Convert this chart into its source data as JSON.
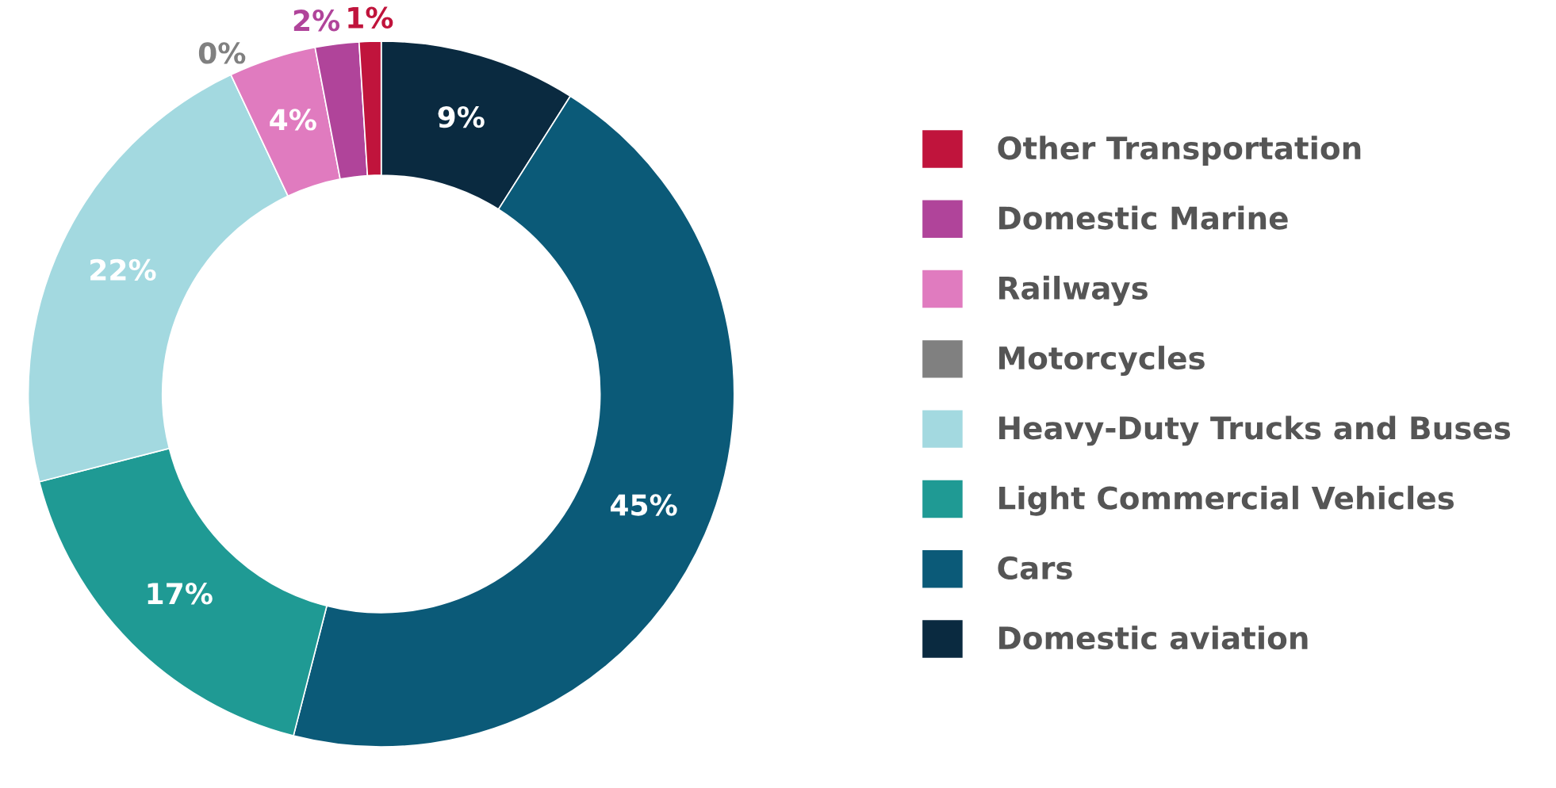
{
  "chart_data": {
    "type": "donut",
    "categories": [
      "Domestic aviation",
      "Cars",
      "Light Commercial Vehicles",
      "Heavy-Duty Trucks and Buses",
      "Motorcycles",
      "Railways",
      "Domestic Marine",
      "Other Transportation"
    ],
    "values": [
      9,
      45,
      17,
      22,
      0,
      4,
      2,
      1
    ],
    "colors": [
      "#0a2a40",
      "#0b5a78",
      "#1f9a94",
      "#a3d9e0",
      "#808080",
      "#e07bbf",
      "#b0449a",
      "#c0143c"
    ],
    "value_labels": [
      "9%",
      "45%",
      "17%",
      "22%",
      "0%",
      "4%",
      "2%",
      "1%"
    ],
    "legend": "right"
  }
}
